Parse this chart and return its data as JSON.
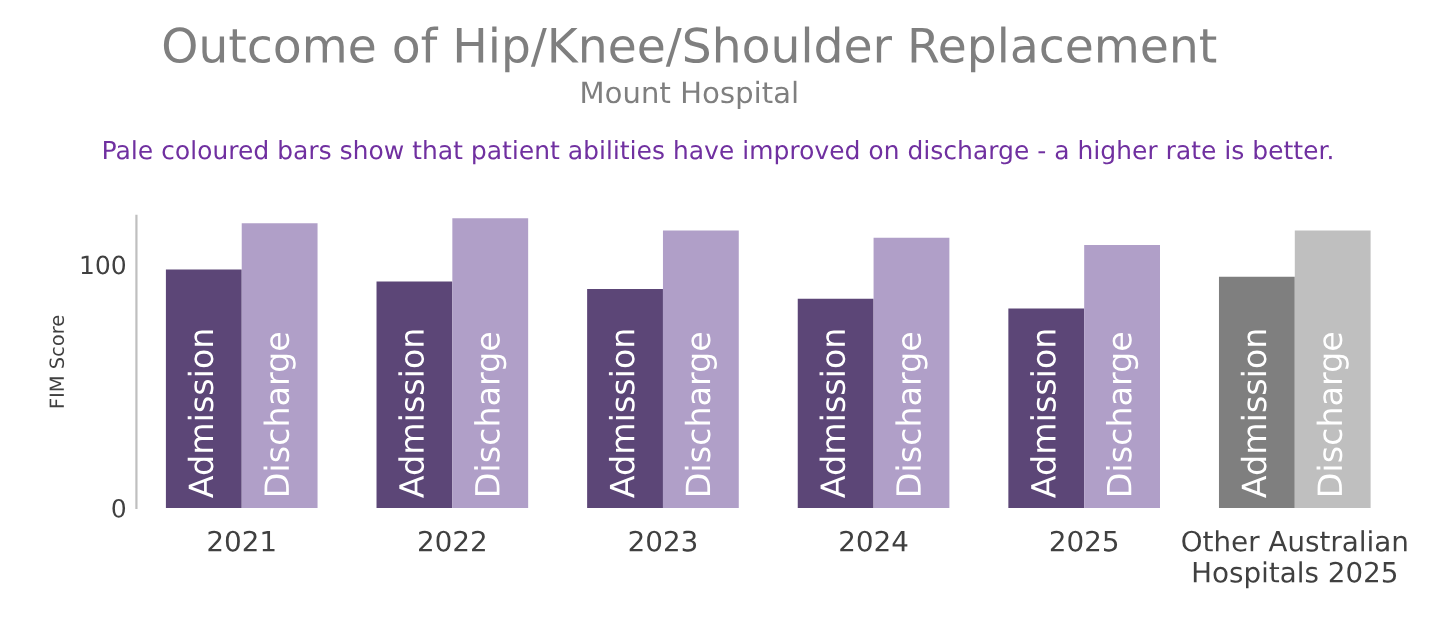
{
  "chart_data": {
    "type": "bar",
    "title": "Outcome of Hip/Knee/Shoulder Replacement",
    "subtitle": "Mount Hospital",
    "ylabel": "FIM Score",
    "annotations": [
      "Pale coloured bars show that patient abilities have improved on discharge - a higher rate is better."
    ],
    "categories": [
      "2021",
      "2022",
      "2023",
      "2024",
      "2025",
      "Other Australian\nHospitals 2025"
    ],
    "series": [
      {
        "name": "Admission",
        "colors": [
          "#5c4677",
          "#5c4677",
          "#5c4677",
          "#5c4677",
          "#5c4677",
          "#7f7f7f"
        ],
        "values": [
          98,
          93,
          90,
          86,
          82,
          95
        ]
      },
      {
        "name": "Discharge",
        "colors": [
          "#b09fc8",
          "#b09fc8",
          "#b09fc8",
          "#b09fc8",
          "#b09fc8",
          "#bfbfbf"
        ],
        "values": [
          117,
          119,
          114,
          111,
          108,
          114
        ]
      }
    ],
    "ylim": [
      0,
      120
    ],
    "yticks": [
      0,
      100
    ],
    "grid": false,
    "legend": false
  }
}
